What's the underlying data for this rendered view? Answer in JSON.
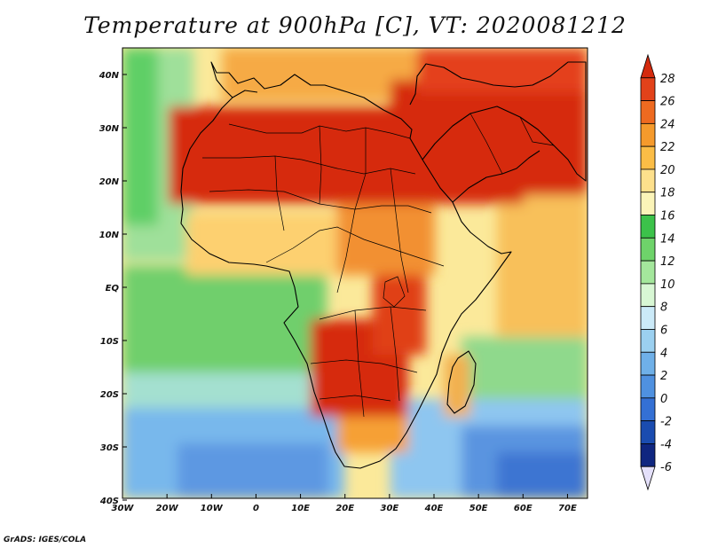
{
  "title": "Temperature at 900hPa [C], VT: 2020081212",
  "credit": "GrADS: IGES/COLA",
  "map": {
    "lon_ticks": [
      "30W",
      "20W",
      "10W",
      "0",
      "10E",
      "20E",
      "30E",
      "40E",
      "50E",
      "60E",
      "70E"
    ],
    "lat_ticks": [
      "40N",
      "30N",
      "20N",
      "10N",
      "EQ",
      "10S",
      "20S",
      "30S",
      "40S"
    ]
  },
  "colorbar": {
    "labels": [
      "28",
      "26",
      "24",
      "22",
      "20",
      "18",
      "16",
      "14",
      "12",
      "10",
      "8",
      "6",
      "4",
      "2",
      "0",
      "-2",
      "-4",
      "-6"
    ],
    "colors": [
      "#d42a0e",
      "#e2421a",
      "#ee6a20",
      "#f59a2c",
      "#fbbd46",
      "#fde08c",
      "#fbf4b8",
      "#3cc24a",
      "#6ed36a",
      "#a4e79c",
      "#d8f7d4",
      "#cbeaf8",
      "#9bd0f0",
      "#6fb0e8",
      "#4f91e0",
      "#3470d4",
      "#1a4cb0",
      "#0f2680",
      "#e4e0fa"
    ]
  }
}
